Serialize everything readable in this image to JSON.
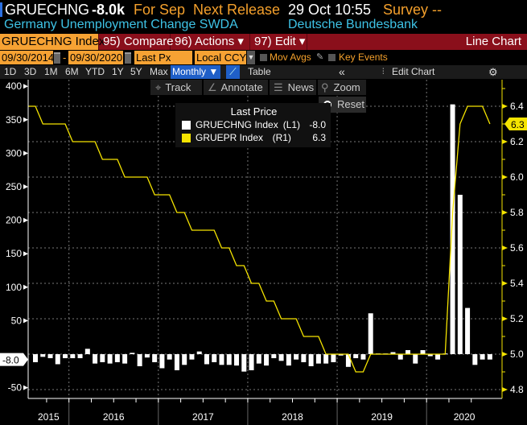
{
  "header": {
    "ticker": "GRUECHNG",
    "last_value": "-8.0k",
    "period": "For Sep",
    "next_release_label": "Next Release",
    "next_release_value": "29 Oct 10:55",
    "survey": "Survey --",
    "description": "Germany Unemployment Change SWDA",
    "source": "Deutsche Bundesbank"
  },
  "menu": {
    "security": "GRUECHNG Index",
    "compare": "95) Compare",
    "actions": "96) Actions ▾",
    "edit": "97) Edit ▾",
    "chart_type": "Line Chart"
  },
  "controls": {
    "start_date": "09/30/2014",
    "dash": "-",
    "end_date": "09/30/2020",
    "field": "Last Px",
    "currency": "Local CCY",
    "mov_avgs": "Mov Avgs",
    "key_events": "Key Events"
  },
  "periods": [
    "1D",
    "3D",
    "1M",
    "6M",
    "YTD",
    "1Y",
    "5Y",
    "Max"
  ],
  "periodicity": "Monthly ▼",
  "table_label": "Table",
  "collapse": "«",
  "edit_chart": "Edit Chart",
  "tools": {
    "track": "Track",
    "annotate": "Annotate",
    "news": "News",
    "zoom": "Zoom",
    "reset": "Reset"
  },
  "colors": {
    "orange": "#f4a02c",
    "menu_red": "#8a0f1b",
    "bars": "#ffffff",
    "line": "#f5e400",
    "cyan": "#3ec3e6",
    "active_blue": "#1f5fc8"
  },
  "chart_data": {
    "type": "bar+line",
    "legend_title": "Last Price",
    "legend_placement": "top-center",
    "grid": true,
    "x_tick_labels": [
      "2015",
      "2016",
      "2017",
      "2018",
      "2019",
      "2020"
    ],
    "months": [
      "2015-08",
      "2015-09",
      "2015-10",
      "2015-11",
      "2015-12",
      "2016-01",
      "2016-02",
      "2016-03",
      "2016-04",
      "2016-05",
      "2016-06",
      "2016-07",
      "2016-08",
      "2016-09",
      "2016-10",
      "2016-11",
      "2016-12",
      "2017-01",
      "2017-02",
      "2017-03",
      "2017-04",
      "2017-05",
      "2017-06",
      "2017-07",
      "2017-08",
      "2017-09",
      "2017-10",
      "2017-11",
      "2017-12",
      "2018-01",
      "2018-02",
      "2018-03",
      "2018-04",
      "2018-05",
      "2018-06",
      "2018-07",
      "2018-08",
      "2018-09",
      "2018-10",
      "2018-11",
      "2018-12",
      "2019-01",
      "2019-02",
      "2019-03",
      "2019-04",
      "2019-05",
      "2019-06",
      "2019-07",
      "2019-08",
      "2019-09",
      "2019-10",
      "2019-11",
      "2019-12",
      "2020-01",
      "2020-02",
      "2020-03",
      "2020-04",
      "2020-05",
      "2020-06",
      "2020-07",
      "2020-08",
      "2020-09"
    ],
    "series": [
      {
        "name": "GRUECHNG Index",
        "axis_label": "(L1)",
        "last": "-8.0",
        "type": "bar",
        "color": "#ffffff",
        "values": [
          -12,
          -4,
          -6,
          -15,
          -6,
          -6,
          -6,
          8,
          -14,
          -12,
          -14,
          -12,
          -14,
          2,
          -18,
          -5,
          -12,
          -21,
          -8,
          -24,
          -16,
          -8,
          4,
          -15,
          -12,
          -16,
          -16,
          -17,
          -26,
          -24,
          -14,
          -17,
          -6,
          -10,
          -17,
          -8,
          -12,
          -18,
          -14,
          -14,
          -12,
          -2,
          -19,
          -6,
          -8,
          61,
          1,
          1,
          3,
          -8,
          6,
          -14,
          6,
          -3,
          -8,
          1,
          373,
          238,
          69,
          -16,
          -8,
          -8
        ]
      },
      {
        "name": "GRUEPR Index",
        "axis_label": "(R1)",
        "last": "6.3",
        "type": "line",
        "color": "#f5e400",
        "values": [
          6.4,
          6.3,
          6.3,
          6.3,
          6.3,
          6.2,
          6.2,
          6.2,
          6.2,
          6.1,
          6.1,
          6.1,
          6.0,
          6.0,
          6.0,
          6.0,
          5.9,
          5.9,
          5.9,
          5.8,
          5.8,
          5.7,
          5.7,
          5.7,
          5.7,
          5.6,
          5.6,
          5.5,
          5.5,
          5.4,
          5.4,
          5.3,
          5.3,
          5.2,
          5.2,
          5.2,
          5.1,
          5.1,
          5.1,
          5.0,
          5.0,
          5.0,
          5.0,
          4.9,
          4.9,
          5.0,
          5.0,
          5.0,
          5.0,
          5.0,
          5.0,
          5.0,
          5.0,
          5.0,
          5.0,
          5.0,
          5.8,
          6.3,
          6.4,
          6.4,
          6.4,
          6.3
        ]
      }
    ],
    "left_axis": {
      "range": [
        -60,
        410
      ],
      "ticks": [
        "400",
        "350",
        "300",
        "250",
        "200",
        "150",
        "100",
        "50",
        "-50"
      ],
      "last_badge": "-8.0"
    },
    "right_axis": {
      "range": [
        4.75,
        6.55
      ],
      "ticks": [
        "6.4",
        "6.2",
        "6.0",
        "5.8",
        "5.6",
        "5.4",
        "5.2",
        "5.0",
        "4.8"
      ],
      "last_badge": "6.3"
    }
  }
}
